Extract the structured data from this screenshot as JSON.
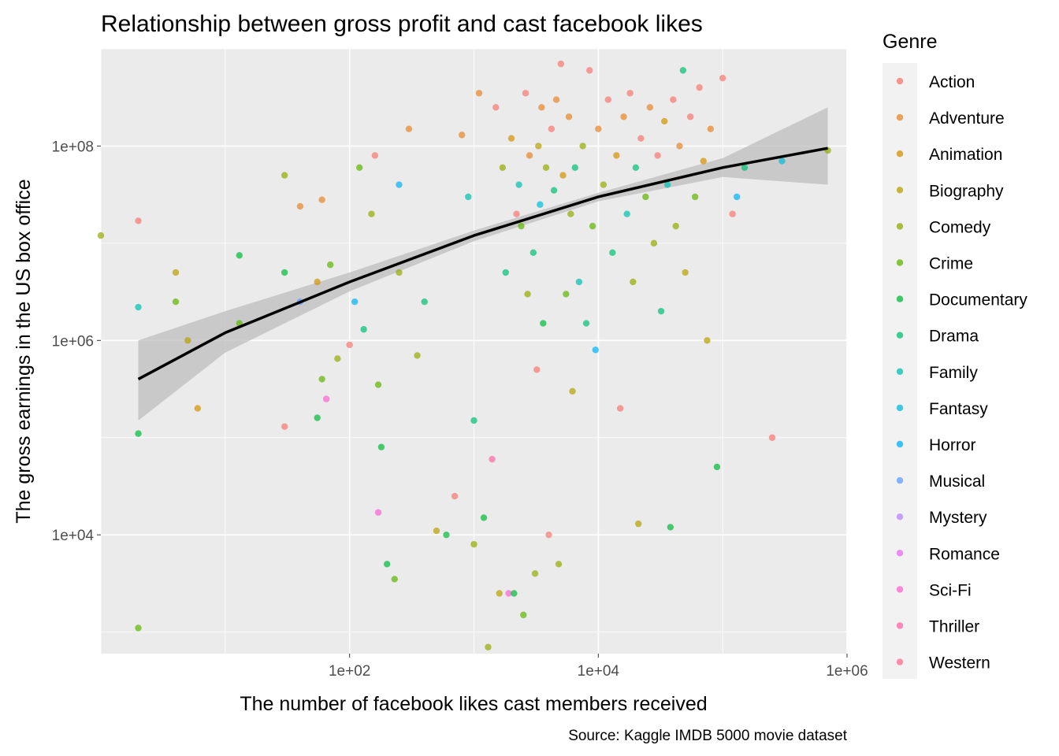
{
  "chart_data": {
    "type": "scatter",
    "title": "Relationship between gross profit and cast facebook likes",
    "xlabel": "The number of facebook likes cast members received",
    "ylabel": "The gross earnings in the US box office",
    "caption": "Source: Kaggle IMDB 5000 movie dataset",
    "x_scale": "log10",
    "y_scale": "log10",
    "xlim": [
      1,
      1000000
    ],
    "ylim": [
      600,
      1000000000
    ],
    "x_ticks": [
      {
        "value": 100,
        "label": "1e+02"
      },
      {
        "value": 10000,
        "label": "1e+04"
      },
      {
        "value": 1000000,
        "label": "1e+06"
      }
    ],
    "y_ticks": [
      {
        "value": 10000,
        "label": "1e+04"
      },
      {
        "value": 1000000,
        "label": "1e+06"
      },
      {
        "value": 100000000,
        "label": "1e+08"
      }
    ],
    "grid": true,
    "legend": {
      "title": "Genre",
      "position": "right",
      "entries": [
        {
          "name": "Action",
          "color": "#F8766D"
        },
        {
          "name": "Adventure",
          "color": "#E88526"
        },
        {
          "name": "Animation",
          "color": "#D39200"
        },
        {
          "name": "Biography",
          "color": "#B79F00"
        },
        {
          "name": "Comedy",
          "color": "#93AA00"
        },
        {
          "name": "Crime",
          "color": "#5EB300"
        },
        {
          "name": "Documentary",
          "color": "#00BA38"
        },
        {
          "name": "Drama",
          "color": "#00BF74"
        },
        {
          "name": "Family",
          "color": "#00C0AF"
        },
        {
          "name": "Fantasy",
          "color": "#00BCD8"
        },
        {
          "name": "Horror",
          "color": "#00B0F6"
        },
        {
          "name": "Musical",
          "color": "#619CFF"
        },
        {
          "name": "Mystery",
          "color": "#B983FF"
        },
        {
          "name": "Romance",
          "color": "#E76BF3"
        },
        {
          "name": "Sci-Fi",
          "color": "#FD61D1"
        },
        {
          "name": "Thriller",
          "color": "#FF67A4"
        },
        {
          "name": "Western",
          "color": "#FF6C91"
        }
      ]
    },
    "trend": {
      "type": "smooth",
      "color": "#000000",
      "ci_color": "#bebebe",
      "points": [
        {
          "x": 2,
          "y": 400000,
          "lo": 150000,
          "hi": 1000000
        },
        {
          "x": 10,
          "y": 1200000,
          "lo": 750000,
          "hi": 2000000
        },
        {
          "x": 100,
          "y": 4000000,
          "lo": 3200000,
          "hi": 5000000
        },
        {
          "x": 1000,
          "y": 12000000,
          "lo": 10500000,
          "hi": 13500000
        },
        {
          "x": 10000,
          "y": 30000000,
          "lo": 27000000,
          "hi": 33000000
        },
        {
          "x": 100000,
          "y": 60000000,
          "lo": 48000000,
          "hi": 75000000
        },
        {
          "x": 700000,
          "y": 95000000,
          "lo": 40000000,
          "hi": 250000000
        }
      ]
    },
    "points": [
      {
        "x": 1,
        "y": 12000000,
        "genre": "Comedy"
      },
      {
        "x": 2,
        "y": 17000000,
        "genre": "Action"
      },
      {
        "x": 2,
        "y": 2200000,
        "genre": "Family"
      },
      {
        "x": 2,
        "y": 110000,
        "genre": "Documentary"
      },
      {
        "x": 2,
        "y": 1100,
        "genre": "Crime"
      },
      {
        "x": 4,
        "y": 5000000,
        "genre": "Biography"
      },
      {
        "x": 4,
        "y": 2500000,
        "genre": "Crime"
      },
      {
        "x": 5,
        "y": 1000000,
        "genre": "Biography"
      },
      {
        "x": 6,
        "y": 200000,
        "genre": "Animation"
      },
      {
        "x": 13,
        "y": 1500000,
        "genre": "Crime"
      },
      {
        "x": 13,
        "y": 7500000,
        "genre": "Documentary"
      },
      {
        "x": 30,
        "y": 50000000,
        "genre": "Comedy"
      },
      {
        "x": 30,
        "y": 5000000,
        "genre": "Documentary"
      },
      {
        "x": 30,
        "y": 130000,
        "genre": "Action"
      },
      {
        "x": 40,
        "y": 24000000,
        "genre": "Adventure"
      },
      {
        "x": 40,
        "y": 2500000,
        "genre": "Musical"
      },
      {
        "x": 55,
        "y": 4000000,
        "genre": "Animation"
      },
      {
        "x": 55,
        "y": 160000,
        "genre": "Documentary"
      },
      {
        "x": 60,
        "y": 28000000,
        "genre": "Adventure"
      },
      {
        "x": 60,
        "y": 400000,
        "genre": "Crime"
      },
      {
        "x": 65,
        "y": 250000,
        "genre": "Sci-Fi"
      },
      {
        "x": 70,
        "y": 6000000,
        "genre": "Crime"
      },
      {
        "x": 80,
        "y": 650000,
        "genre": "Comedy"
      },
      {
        "x": 100,
        "y": 900000,
        "genre": "Action"
      },
      {
        "x": 110,
        "y": 2500000,
        "genre": "Horror"
      },
      {
        "x": 120,
        "y": 60000000,
        "genre": "Crime"
      },
      {
        "x": 130,
        "y": 1300000,
        "genre": "Drama"
      },
      {
        "x": 150,
        "y": 20000000,
        "genre": "Comedy"
      },
      {
        "x": 160,
        "y": 80000000,
        "genre": "Action"
      },
      {
        "x": 170,
        "y": 17000,
        "genre": "Sci-Fi"
      },
      {
        "x": 170,
        "y": 350000,
        "genre": "Crime"
      },
      {
        "x": 180,
        "y": 80000,
        "genre": "Documentary"
      },
      {
        "x": 200,
        "y": 5000,
        "genre": "Documentary"
      },
      {
        "x": 230,
        "y": 3500,
        "genre": "Crime"
      },
      {
        "x": 250,
        "y": 40000000,
        "genre": "Horror"
      },
      {
        "x": 250,
        "y": 5000000,
        "genre": "Comedy"
      },
      {
        "x": 300,
        "y": 150000000,
        "genre": "Adventure"
      },
      {
        "x": 350,
        "y": 700000,
        "genre": "Comedy"
      },
      {
        "x": 400,
        "y": 2500000,
        "genre": "Drama"
      },
      {
        "x": 500,
        "y": 11000,
        "genre": "Biography"
      },
      {
        "x": 600,
        "y": 10000,
        "genre": "Documentary"
      },
      {
        "x": 700,
        "y": 25000,
        "genre": "Action"
      },
      {
        "x": 800,
        "y": 130000000,
        "genre": "Adventure"
      },
      {
        "x": 900,
        "y": 30000000,
        "genre": "Family"
      },
      {
        "x": 1000,
        "y": 8000,
        "genre": "Comedy"
      },
      {
        "x": 1000,
        "y": 150000,
        "genre": "Drama"
      },
      {
        "x": 1100,
        "y": 350000000,
        "genre": "Adventure"
      },
      {
        "x": 1200,
        "y": 15000,
        "genre": "Documentary"
      },
      {
        "x": 1300,
        "y": 700,
        "genre": "Comedy"
      },
      {
        "x": 1400,
        "y": 60000,
        "genre": "Thriller"
      },
      {
        "x": 1500,
        "y": 250000000,
        "genre": "Action"
      },
      {
        "x": 1600,
        "y": 2500,
        "genre": "Biography"
      },
      {
        "x": 1700,
        "y": 60000000,
        "genre": "Comedy"
      },
      {
        "x": 1800,
        "y": 5000000,
        "genre": "Drama"
      },
      {
        "x": 1900,
        "y": 2500,
        "genre": "Sci-Fi"
      },
      {
        "x": 2000,
        "y": 120000000,
        "genre": "Animation"
      },
      {
        "x": 2100,
        "y": 2500,
        "genre": "Documentary"
      },
      {
        "x": 2200,
        "y": 20000000,
        "genre": "Action"
      },
      {
        "x": 2300,
        "y": 40000000,
        "genre": "Family"
      },
      {
        "x": 2400,
        "y": 15000000,
        "genre": "Crime"
      },
      {
        "x": 2500,
        "y": 1500,
        "genre": "Crime"
      },
      {
        "x": 2600,
        "y": 350000000,
        "genre": "Action"
      },
      {
        "x": 2700,
        "y": 3000000,
        "genre": "Comedy"
      },
      {
        "x": 2800,
        "y": 80000000,
        "genre": "Adventure"
      },
      {
        "x": 3000,
        "y": 8000000,
        "genre": "Drama"
      },
      {
        "x": 3100,
        "y": 4000,
        "genre": "Comedy"
      },
      {
        "x": 3200,
        "y": 500000,
        "genre": "Action"
      },
      {
        "x": 3300,
        "y": 100000000,
        "genre": "Biography"
      },
      {
        "x": 3400,
        "y": 25000000,
        "genre": "Fantasy"
      },
      {
        "x": 3500,
        "y": 250000000,
        "genre": "Adventure"
      },
      {
        "x": 3600,
        "y": 1500000,
        "genre": "Documentary"
      },
      {
        "x": 3800,
        "y": 60000000,
        "genre": "Comedy"
      },
      {
        "x": 4000,
        "y": 10000,
        "genre": "Action"
      },
      {
        "x": 4200,
        "y": 150000000,
        "genre": "Action"
      },
      {
        "x": 4400,
        "y": 35000000,
        "genre": "Drama"
      },
      {
        "x": 4600,
        "y": 300000000,
        "genre": "Adventure"
      },
      {
        "x": 4800,
        "y": 5000,
        "genre": "Comedy"
      },
      {
        "x": 5000,
        "y": 700000000,
        "genre": "Action"
      },
      {
        "x": 5200,
        "y": 50000000,
        "genre": "Animation"
      },
      {
        "x": 5500,
        "y": 3000000,
        "genre": "Crime"
      },
      {
        "x": 5800,
        "y": 200000000,
        "genre": "Adventure"
      },
      {
        "x": 6000,
        "y": 20000000,
        "genre": "Comedy"
      },
      {
        "x": 6200,
        "y": 300000,
        "genre": "Biography"
      },
      {
        "x": 6500,
        "y": 60000000,
        "genre": "Drama"
      },
      {
        "x": 7000,
        "y": 4000000,
        "genre": "Family"
      },
      {
        "x": 7500,
        "y": 100000000,
        "genre": "Comedy"
      },
      {
        "x": 8000,
        "y": 1500000,
        "genre": "Drama"
      },
      {
        "x": 8500,
        "y": 600000000,
        "genre": "Action"
      },
      {
        "x": 9000,
        "y": 15000000,
        "genre": "Crime"
      },
      {
        "x": 9500,
        "y": 800000,
        "genre": "Horror"
      },
      {
        "x": 10000,
        "y": 150000000,
        "genre": "Adventure"
      },
      {
        "x": 11000,
        "y": 40000000,
        "genre": "Comedy"
      },
      {
        "x": 12000,
        "y": 300000000,
        "genre": "Action"
      },
      {
        "x": 13000,
        "y": 8000000,
        "genre": "Drama"
      },
      {
        "x": 14000,
        "y": 80000000,
        "genre": "Animation"
      },
      {
        "x": 15000,
        "y": 200000,
        "genre": "Action"
      },
      {
        "x": 16000,
        "y": 200000000,
        "genre": "Adventure"
      },
      {
        "x": 17000,
        "y": 20000000,
        "genre": "Family"
      },
      {
        "x": 18000,
        "y": 350000000,
        "genre": "Action"
      },
      {
        "x": 19000,
        "y": 4000000,
        "genre": "Comedy"
      },
      {
        "x": 20000,
        "y": 60000000,
        "genre": "Drama"
      },
      {
        "x": 21000,
        "y": 13000,
        "genre": "Biography"
      },
      {
        "x": 22000,
        "y": 120000000,
        "genre": "Action"
      },
      {
        "x": 24000,
        "y": 30000000,
        "genre": "Crime"
      },
      {
        "x": 26000,
        "y": 250000000,
        "genre": "Adventure"
      },
      {
        "x": 28000,
        "y": 10000000,
        "genre": "Comedy"
      },
      {
        "x": 30000,
        "y": 80000000,
        "genre": "Action"
      },
      {
        "x": 32000,
        "y": 2000000,
        "genre": "Drama"
      },
      {
        "x": 34000,
        "y": 180000000,
        "genre": "Animation"
      },
      {
        "x": 36000,
        "y": 40000000,
        "genre": "Family"
      },
      {
        "x": 38000,
        "y": 12000,
        "genre": "Documentary"
      },
      {
        "x": 40000,
        "y": 300000000,
        "genre": "Action"
      },
      {
        "x": 42000,
        "y": 15000000,
        "genre": "Comedy"
      },
      {
        "x": 45000,
        "y": 100000000,
        "genre": "Adventure"
      },
      {
        "x": 48000,
        "y": 600000000,
        "genre": "Drama"
      },
      {
        "x": 50000,
        "y": 5000000,
        "genre": "Biography"
      },
      {
        "x": 55000,
        "y": 200000000,
        "genre": "Action"
      },
      {
        "x": 60000,
        "y": 30000000,
        "genre": "Crime"
      },
      {
        "x": 65000,
        "y": 400000000,
        "genre": "Action"
      },
      {
        "x": 70000,
        "y": 70000000,
        "genre": "Animation"
      },
      {
        "x": 75000,
        "y": 1000000,
        "genre": "Biography"
      },
      {
        "x": 80000,
        "y": 150000000,
        "genre": "Adventure"
      },
      {
        "x": 90000,
        "y": 50000,
        "genre": "Documentary"
      },
      {
        "x": 100000,
        "y": 500000000,
        "genre": "Action"
      },
      {
        "x": 120000,
        "y": 20000000,
        "genre": "Action"
      },
      {
        "x": 130000,
        "y": 30000000,
        "genre": "Horror"
      },
      {
        "x": 150000,
        "y": 60000000,
        "genre": "Drama"
      },
      {
        "x": 250000,
        "y": 100000,
        "genre": "Action"
      },
      {
        "x": 300000,
        "y": 70000000,
        "genre": "Fantasy"
      },
      {
        "x": 700000,
        "y": 90000000,
        "genre": "Comedy"
      }
    ]
  }
}
